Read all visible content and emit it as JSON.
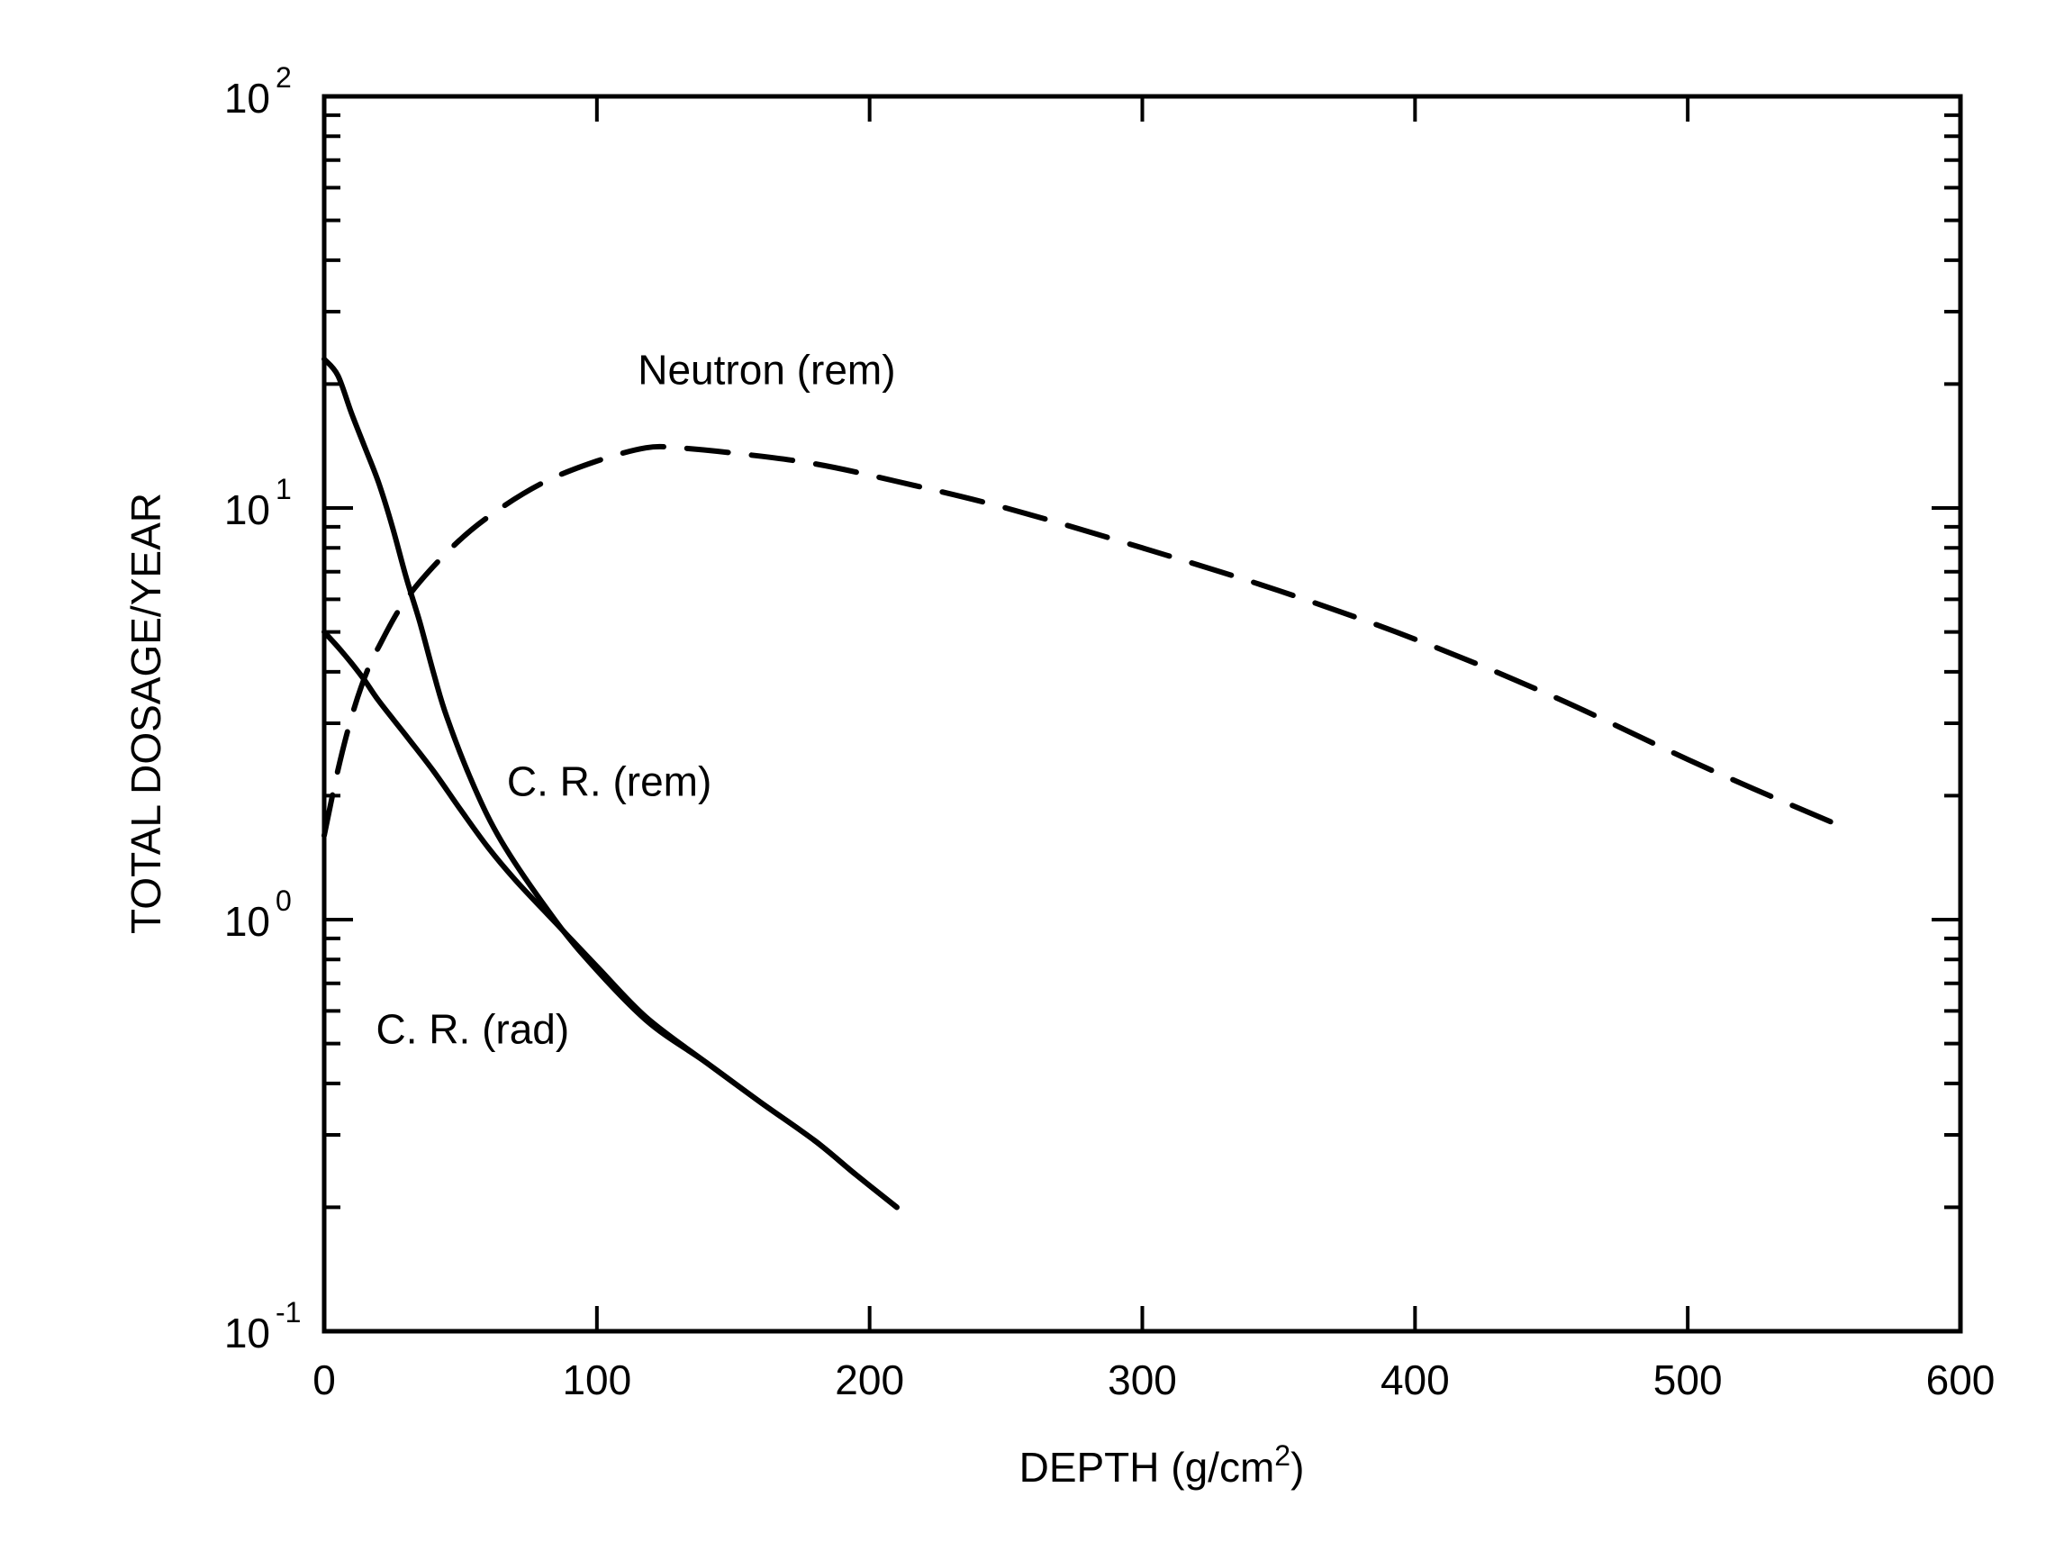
{
  "chart_data": {
    "type": "line",
    "title": "",
    "xlabel": "DEPTH (g/cm",
    "xlabel_sup": "2",
    "xlabel_close": ")",
    "ylabel": "TOTAL DOSAGE/YEAR",
    "xlim": [
      0,
      600
    ],
    "ylim": [
      0.1,
      100
    ],
    "yscale": "log",
    "grid": false,
    "x_ticks": [
      0,
      100,
      200,
      300,
      400,
      500,
      600
    ],
    "x_tick_labels": [
      "0",
      "100",
      "200",
      "300",
      "400",
      "500",
      "600"
    ],
    "y_ticks": [
      {
        "value": 100,
        "base": "10",
        "exp": "2"
      },
      {
        "value": 10,
        "base": "10",
        "exp": "1"
      },
      {
        "value": 1,
        "base": "10",
        "exp": "0"
      },
      {
        "value": 0.1,
        "base": "10",
        "exp": "-1"
      }
    ],
    "series": [
      {
        "name": "C. R. (rem)",
        "style": "solid",
        "x": [
          0,
          5,
          10,
          15,
          20,
          25,
          30,
          35,
          40,
          45,
          55,
          65,
          80,
          95,
          118,
          140,
          160,
          180,
          195,
          210
        ],
        "y": [
          23,
          21,
          17,
          14,
          11.5,
          9,
          6.8,
          5.3,
          4.0,
          3.1,
          2.1,
          1.55,
          1.1,
          0.82,
          0.57,
          0.45,
          0.36,
          0.29,
          0.24,
          0.2
        ]
      },
      {
        "name": "C. R. (rad)",
        "style": "solid",
        "x": [
          0,
          5,
          10,
          15,
          20,
          30,
          40,
          50,
          60,
          70,
          85,
          100,
          118,
          140,
          160,
          180,
          195,
          210
        ],
        "y": [
          5,
          4.6,
          4.2,
          3.8,
          3.4,
          2.8,
          2.3,
          1.85,
          1.5,
          1.25,
          0.98,
          0.77,
          0.58,
          0.45,
          0.36,
          0.29,
          0.24,
          0.2
        ]
      },
      {
        "name": "Neutron (rem)",
        "style": "dashed",
        "x": [
          0,
          5,
          10,
          15,
          20,
          30,
          45,
          60,
          80,
          100,
          118,
          130,
          150,
          180,
          210,
          250,
          300,
          350,
          400,
          450,
          500,
          530,
          555
        ],
        "y": [
          1.6,
          2.3,
          3.1,
          3.9,
          4.6,
          6.0,
          7.8,
          9.5,
          11.5,
          13.0,
          14.0,
          14.0,
          13.6,
          12.8,
          11.6,
          10.0,
          8.0,
          6.3,
          4.8,
          3.5,
          2.45,
          2.0,
          1.7
        ]
      }
    ],
    "annotations": [
      {
        "text": "Neutron (rem)",
        "x": 115,
        "y": 20
      },
      {
        "text": "C. R. (rem)",
        "x": 67,
        "y": 2.0
      },
      {
        "text": "C. R. (rad)",
        "x": 19,
        "y": 0.5
      }
    ]
  }
}
